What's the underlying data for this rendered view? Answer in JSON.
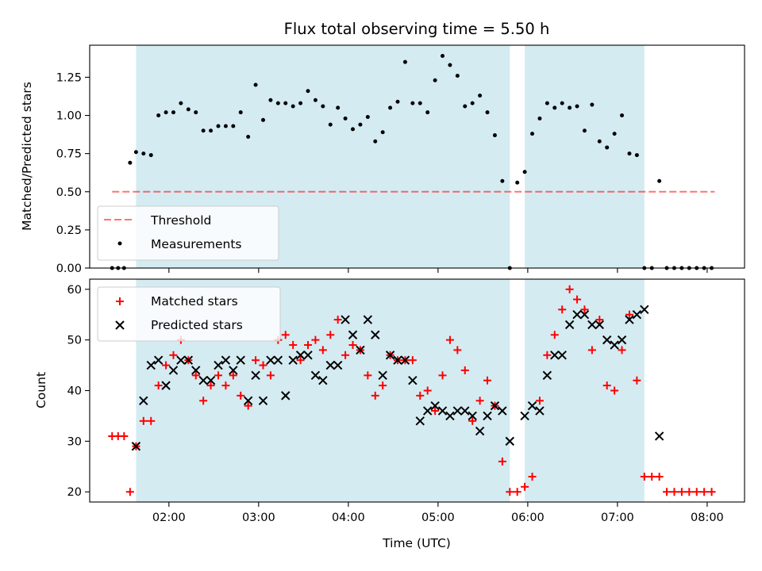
{
  "chart_data": [
    {
      "type": "scatter",
      "title": "Flux total observing time = 5.50 h",
      "ylabel": "Matched/Predicted stars",
      "xlabel": "",
      "xlim": [
        "01:07",
        "08:25"
      ],
      "ylim": [
        0,
        1.46
      ],
      "y_ticks": [
        0.0,
        0.25,
        0.5,
        0.75,
        1.0,
        1.25
      ],
      "y_tick_labels": [
        "0.00",
        "0.25",
        "0.50",
        "0.75",
        "1.00",
        "1.25"
      ],
      "x_ticks": [
        "02:00",
        "03:00",
        "04:00",
        "05:00",
        "06:00",
        "07:00",
        "08:00"
      ],
      "shaded_spans": [
        [
          "01:38",
          "05:48"
        ],
        [
          "05:58",
          "07:18"
        ]
      ],
      "shade_color": "#add8e6",
      "threshold": {
        "name": "Threshold",
        "value": 0.5,
        "x_range": [
          "01:22",
          "08:05"
        ],
        "color": "#ff0000"
      },
      "legend": {
        "position": "lower-left",
        "entries": [
          "Threshold",
          "Measurements"
        ]
      },
      "series": [
        {
          "name": "Measurements",
          "color": "#000000",
          "marker": "dot",
          "x": [
            "01:22",
            "01:26",
            "01:30",
            "01:34",
            "01:38",
            "01:43",
            "01:48",
            "01:53",
            "01:58",
            "02:03",
            "02:08",
            "02:13",
            "02:18",
            "02:23",
            "02:28",
            "02:33",
            "02:38",
            "02:43",
            "02:48",
            "02:53",
            "02:58",
            "03:03",
            "03:08",
            "03:13",
            "03:18",
            "03:23",
            "03:28",
            "03:33",
            "03:38",
            "03:43",
            "03:48",
            "03:53",
            "03:58",
            "04:03",
            "04:08",
            "04:13",
            "04:18",
            "04:23",
            "04:28",
            "04:33",
            "04:38",
            "04:43",
            "04:48",
            "04:53",
            "04:58",
            "05:03",
            "05:08",
            "05:13",
            "05:18",
            "05:23",
            "05:28",
            "05:33",
            "05:38",
            "05:43",
            "05:48",
            "05:53",
            "05:58",
            "06:03",
            "06:08",
            "06:13",
            "06:18",
            "06:23",
            "06:28",
            "06:33",
            "06:38",
            "06:43",
            "06:48",
            "06:53",
            "06:58",
            "07:03",
            "07:08",
            "07:13",
            "07:18",
            "07:23",
            "07:28",
            "07:33",
            "07:38",
            "07:43",
            "07:48",
            "07:53",
            "07:58",
            "08:03"
          ],
          "y": [
            0,
            0,
            0,
            0.69,
            0.76,
            0.75,
            0.74,
            1.0,
            1.02,
            1.02,
            1.08,
            1.04,
            1.02,
            0.9,
            0.9,
            0.93,
            0.93,
            0.93,
            1.02,
            0.86,
            1.2,
            0.97,
            1.1,
            1.08,
            1.08,
            1.06,
            1.08,
            1.16,
            1.1,
            1.06,
            0.94,
            1.05,
            0.98,
            0.91,
            0.94,
            0.99,
            0.83,
            0.89,
            1.05,
            1.09,
            1.35,
            1.08,
            1.08,
            1.02,
            1.23,
            1.39,
            1.33,
            1.26,
            1.06,
            1.08,
            1.13,
            1.02,
            0.87,
            0.57,
            0,
            0.56,
            0.63,
            0.88,
            0.98,
            1.08,
            1.05,
            1.08,
            1.05,
            1.06,
            0.9,
            1.07,
            0.83,
            0.79,
            0.88,
            1.0,
            0.75,
            0.74,
            0,
            0,
            0.57,
            0,
            0,
            0,
            0,
            0,
            0,
            0
          ]
        }
      ]
    },
    {
      "type": "scatter",
      "title": "",
      "ylabel": "Count",
      "xlabel": "Time (UTC)",
      "xlim": [
        "01:07",
        "08:25"
      ],
      "ylim": [
        18,
        62
      ],
      "y_ticks": [
        20,
        30,
        40,
        50,
        60
      ],
      "y_tick_labels": [
        "20",
        "30",
        "40",
        "50",
        "60"
      ],
      "x_ticks": [
        "02:00",
        "03:00",
        "04:00",
        "05:00",
        "06:00",
        "07:00",
        "08:00"
      ],
      "x_tick_labels": [
        "02:00",
        "03:00",
        "04:00",
        "05:00",
        "06:00",
        "07:00",
        "08:00"
      ],
      "shaded_spans": [
        [
          "01:38",
          "05:48"
        ],
        [
          "05:58",
          "07:18"
        ]
      ],
      "shade_color": "#add8e6",
      "legend": {
        "position": "upper-left",
        "entries": [
          "Matched stars",
          "Predicted stars"
        ]
      },
      "series": [
        {
          "name": "Matched stars",
          "color": "#ff0000",
          "marker": "plus",
          "x": [
            "01:22",
            "01:26",
            "01:30",
            "01:34",
            "01:38",
            "01:43",
            "01:48",
            "01:53",
            "01:58",
            "02:03",
            "02:08",
            "02:13",
            "02:18",
            "02:23",
            "02:28",
            "02:33",
            "02:38",
            "02:43",
            "02:48",
            "02:53",
            "02:58",
            "03:03",
            "03:08",
            "03:13",
            "03:18",
            "03:23",
            "03:28",
            "03:33",
            "03:38",
            "03:43",
            "03:48",
            "03:53",
            "03:58",
            "04:03",
            "04:08",
            "04:13",
            "04:18",
            "04:23",
            "04:28",
            "04:33",
            "04:38",
            "04:43",
            "04:48",
            "04:53",
            "04:58",
            "05:03",
            "05:08",
            "05:13",
            "05:18",
            "05:23",
            "05:28",
            "05:33",
            "05:38",
            "05:43",
            "05:48",
            "05:53",
            "05:58",
            "06:03",
            "06:08",
            "06:13",
            "06:18",
            "06:23",
            "06:28",
            "06:33",
            "06:38",
            "06:43",
            "06:48",
            "06:53",
            "06:58",
            "07:03",
            "07:08",
            "07:13",
            "07:18",
            "07:23",
            "07:28",
            "07:33",
            "07:38",
            "07:43",
            "07:48",
            "07:53",
            "07:58",
            "08:03"
          ],
          "y": [
            31,
            31,
            31,
            20,
            29,
            34,
            34,
            41,
            45,
            47,
            50,
            46,
            43,
            38,
            41,
            43,
            41,
            43,
            39,
            37,
            46,
            45,
            43,
            50,
            51,
            49,
            46,
            49,
            50,
            48,
            51,
            54,
            47,
            49,
            48,
            43,
            39,
            41,
            47,
            46,
            46,
            46,
            39,
            40,
            36,
            43,
            50,
            48,
            44,
            34,
            38,
            42,
            37,
            26,
            20,
            20,
            21,
            23,
            38,
            47,
            51,
            56,
            60,
            58,
            56,
            48,
            54,
            41,
            40,
            48,
            55,
            42,
            23,
            23,
            23,
            20,
            20,
            20,
            20,
            20,
            20,
            20
          ]
        },
        {
          "name": "Predicted stars",
          "color": "#000000",
          "marker": "x",
          "x": [
            "01:38",
            "01:43",
            "01:48",
            "01:53",
            "01:58",
            "02:03",
            "02:08",
            "02:13",
            "02:18",
            "02:23",
            "02:28",
            "02:33",
            "02:38",
            "02:43",
            "02:48",
            "02:53",
            "02:58",
            "03:03",
            "03:08",
            "03:13",
            "03:18",
            "03:23",
            "03:28",
            "03:33",
            "03:38",
            "03:43",
            "03:48",
            "03:53",
            "03:58",
            "04:03",
            "04:08",
            "04:13",
            "04:18",
            "04:23",
            "04:28",
            "04:33",
            "04:38",
            "04:43",
            "04:48",
            "04:53",
            "04:58",
            "05:03",
            "05:08",
            "05:13",
            "05:18",
            "05:23",
            "05:28",
            "05:33",
            "05:38",
            "05:43",
            "05:48",
            "05:58",
            "06:03",
            "06:08",
            "06:13",
            "06:18",
            "06:23",
            "06:28",
            "06:33",
            "06:38",
            "06:43",
            "06:48",
            "06:53",
            "06:58",
            "07:03",
            "07:08",
            "07:13",
            "07:18",
            "07:28"
          ],
          "y": [
            29,
            38,
            45,
            46,
            41,
            44,
            46,
            46,
            44,
            42,
            42,
            45,
            46,
            44,
            46,
            38,
            43,
            38,
            46,
            46,
            39,
            46,
            47,
            47,
            43,
            42,
            45,
            45,
            54,
            51,
            48,
            54,
            51,
            43,
            47,
            46,
            46,
            42,
            34,
            36,
            37,
            36,
            35,
            36,
            36,
            35,
            32,
            35,
            37,
            36,
            30,
            35,
            37,
            36,
            43,
            47,
            47,
            53,
            55,
            55,
            53,
            53,
            50,
            49,
            50,
            54,
            55,
            56,
            31
          ]
        }
      ]
    }
  ]
}
